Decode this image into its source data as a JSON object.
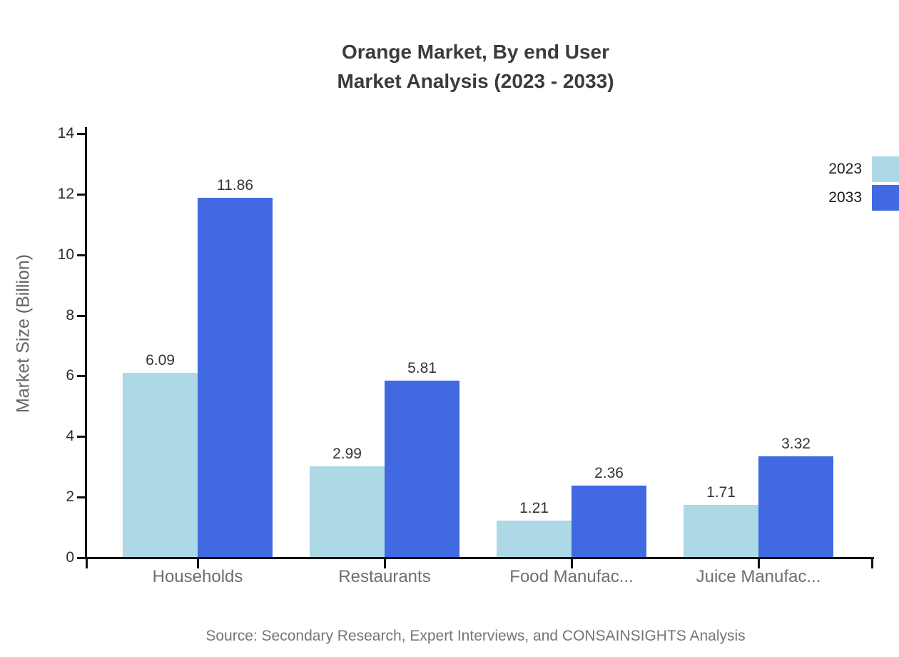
{
  "title": {
    "line1": "Orange Market, By end User",
    "line2": "Market Analysis (2023 - 2033)"
  },
  "chart_data": {
    "type": "bar",
    "title": "Orange Market, By end User Market Analysis (2023 - 2033)",
    "categories": [
      "Households",
      "Restaurants",
      "Food Manufac...",
      "Juice Manufac..."
    ],
    "series": [
      {
        "name": "2023",
        "color": "#ADD8E6",
        "values": [
          6.09,
          2.99,
          1.21,
          1.71
        ]
      },
      {
        "name": "2033",
        "color": "#4169E1",
        "values": [
          11.86,
          5.81,
          2.36,
          3.32
        ]
      }
    ],
    "xlabel": "",
    "ylabel": "Market Size (Billion)",
    "ylim": [
      0,
      14
    ],
    "yticks": [
      0,
      2,
      4,
      6,
      8,
      10,
      12,
      14
    ],
    "grid": false,
    "legend_position": "top-right",
    "value_labels": true
  },
  "source": "Source: Secondary Research, Expert Interviews, and CONSAINSIGHTS Analysis",
  "colors": {
    "title": "#3b3b3b",
    "axis": "#111111",
    "y_tick_label": "#2e2e2e",
    "category_label": "#6e6e6e",
    "value_label": "#333333",
    "legend_text": "#1c1c1c",
    "source_text": "#757575",
    "series_2023": "#ADD8E6",
    "series_2033": "#4169E1"
  }
}
